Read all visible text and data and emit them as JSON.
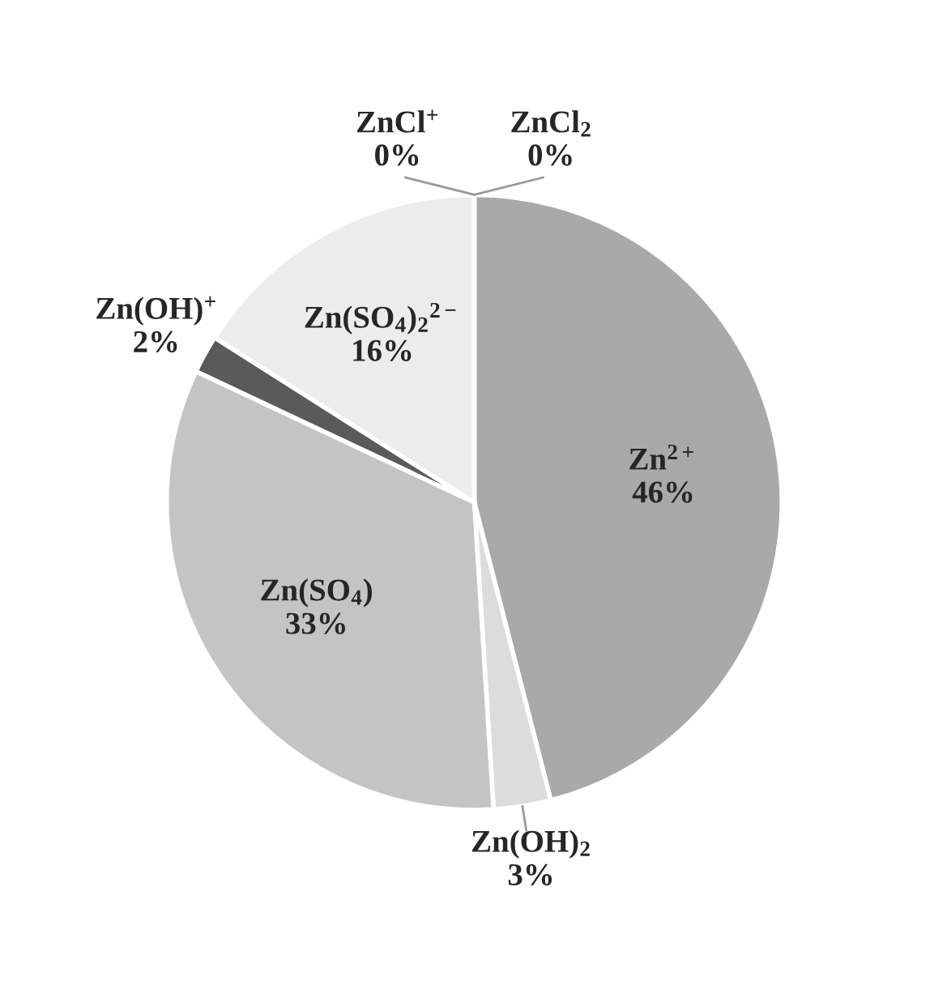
{
  "chart_data": {
    "type": "pie",
    "categories": [
      "ZnCl$_{2}$",
      "Zn$^{2+}$",
      "Zn(OH)$_{2}$",
      "Zn(SO$_{4}$)",
      "Zn(OH)$^{+}$",
      "Zn(SO$_{4}$)$_{2}$$^{2−}$",
      "ZnCl$^{+}$"
    ],
    "values": [
      0,
      46,
      3,
      33,
      2,
      16,
      0
    ],
    "colors": [
      "#ffffff",
      "#a9a9a9",
      "#dcdcdc",
      "#c4c4c4",
      "#5a5a5a",
      "#ececec",
      "#ffffff"
    ],
    "value_labels": [
      "0%",
      "46%",
      "3%",
      "33%",
      "2%",
      "16%",
      "0%"
    ],
    "legend": false
  }
}
